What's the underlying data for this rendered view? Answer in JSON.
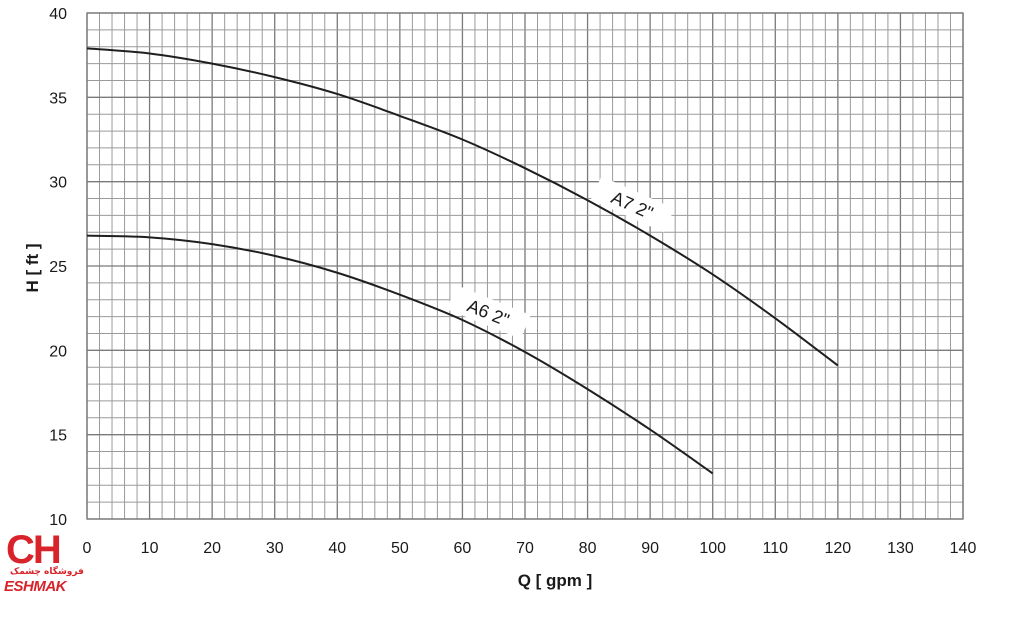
{
  "chart_data": {
    "type": "line",
    "xlabel": "Q [ gpm ]",
    "ylabel": "H [ ft ]",
    "xlim": [
      0,
      140
    ],
    "ylim": [
      10,
      40
    ],
    "x_ticks": [
      0,
      10,
      20,
      30,
      40,
      50,
      60,
      70,
      80,
      90,
      100,
      110,
      120,
      130,
      140
    ],
    "y_ticks": [
      10,
      15,
      20,
      25,
      30,
      35,
      40
    ],
    "grid": true,
    "series": [
      {
        "name": "A7 2\"",
        "x": [
          0,
          10,
          20,
          30,
          40,
          50,
          60,
          70,
          80,
          90,
          100,
          110,
          120
        ],
        "y": [
          37.9,
          37.6,
          37.0,
          36.2,
          35.2,
          33.9,
          32.5,
          30.8,
          28.9,
          26.8,
          24.5,
          21.9,
          19.1
        ]
      },
      {
        "name": "A6 2\"",
        "x": [
          0,
          10,
          20,
          30,
          40,
          50,
          60,
          70,
          80,
          90,
          100
        ],
        "y": [
          26.8,
          26.7,
          26.3,
          25.6,
          24.6,
          23.3,
          21.8,
          19.9,
          17.7,
          15.3,
          12.7
        ]
      }
    ]
  },
  "logo": {
    "mark": "CH",
    "tagline": "فروشگاه چشمک",
    "name": "ESHMAK"
  }
}
